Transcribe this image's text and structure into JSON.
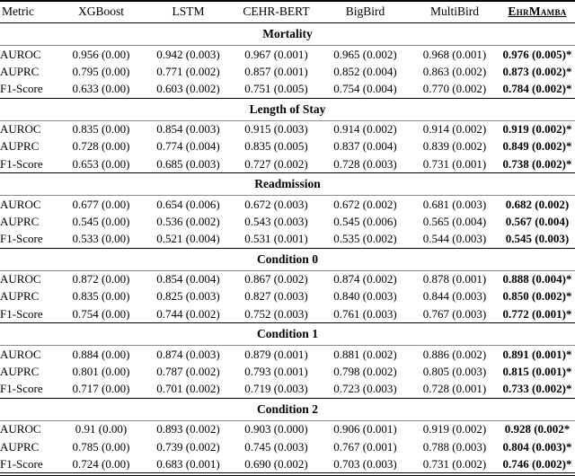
{
  "table": {
    "columns": [
      "Metric",
      "XGBoost",
      "LSTM",
      "CEHR-BERT",
      "BigBird",
      "MultiBird",
      "EhrMamba"
    ],
    "sections": [
      {
        "title": "Mortality",
        "rows": [
          {
            "metric": "AUROC",
            "values": [
              "0.956 (0.00)",
              "0.942 (0.003)",
              "0.967 (0.001)",
              "0.965 (0.002)",
              "0.968 (0.001)",
              "0.976 (0.005)*"
            ]
          },
          {
            "metric": "AUPRC",
            "values": [
              "0.795 (0.00)",
              "0.771 (0.002)",
              "0.857 (0.001)",
              "0.852 (0.004)",
              "0.863 (0.002)",
              "0.873 (0.002)*"
            ]
          },
          {
            "metric": "F1-Score",
            "values": [
              "0.633 (0.00)",
              "0.603 (0.002)",
              "0.751 (0.005)",
              "0.754 (0.004)",
              "0.770 (0.002)",
              "0.784 (0.002)*"
            ]
          }
        ]
      },
      {
        "title": "Length of Stay",
        "rows": [
          {
            "metric": "AUROC",
            "values": [
              "0.835 (0.00)",
              "0.854 (0.003)",
              "0.915 (0.003)",
              "0.914 (0.002)",
              "0.914 (0.002)",
              "0.919 (0.002)*"
            ]
          },
          {
            "metric": "AUPRC",
            "values": [
              "0.728 (0.00)",
              "0.774 (0.004)",
              "0.835 (0.005)",
              "0.837 (0.004)",
              "0.839 (0.002)",
              "0.849 (0.002)*"
            ]
          },
          {
            "metric": "F1-Score",
            "values": [
              "0.653 (0.00)",
              "0.685 (0.003)",
              "0.727 (0.002)",
              "0.728 (0.003)",
              "0.731 (0.001)",
              "0.738 (0.002)*"
            ]
          }
        ]
      },
      {
        "title": "Readmission",
        "rows": [
          {
            "metric": "AUROC",
            "values": [
              "0.677 (0.00)",
              "0.654 (0.006)",
              "0.672 (0.003)",
              "0.672 (0.002)",
              "0.681 (0.003)",
              "0.682 (0.002)"
            ]
          },
          {
            "metric": "AUPRC",
            "values": [
              "0.545 (0.00)",
              "0.536 (0.002)",
              "0.543 (0.003)",
              "0.545 (0.006)",
              "0.565 (0.004)",
              "0.567 (0.004)"
            ]
          },
          {
            "metric": "F1-Score",
            "values": [
              "0.533 (0.00)",
              "0.521 (0.004)",
              "0.531 (0.001)",
              "0.535 (0.002)",
              "0.544 (0.003)",
              "0.545 (0.003)"
            ]
          }
        ]
      },
      {
        "title": "Condition 0",
        "rows": [
          {
            "metric": "AUROC",
            "values": [
              "0.872 (0.00)",
              "0.854 (0.004)",
              "0.867 (0.002)",
              "0.874 (0.002)",
              "0.878 (0.001)",
              "0.888 (0.004)*"
            ]
          },
          {
            "metric": "AUPRC",
            "values": [
              "0.835 (0.00)",
              "0.825 (0.003)",
              "0.827 (0.003)",
              "0.840 (0.003)",
              "0.844 (0.003)",
              "0.850 (0.002)*"
            ]
          },
          {
            "metric": "F1-Score",
            "values": [
              "0.754 (0.00)",
              "0.744 (0.002)",
              "0.752 (0.003)",
              "0.761 (0.003)",
              "0.767 (0.003)",
              "0.772 (0.001)*"
            ]
          }
        ]
      },
      {
        "title": "Condition 1",
        "rows": [
          {
            "metric": "AUROC",
            "values": [
              "0.884 (0.00)",
              "0.874 (0.003)",
              "0.879 (0.001)",
              "0.881 (0.002)",
              "0.886 (0.002)",
              "0.891 (0.001)*"
            ]
          },
          {
            "metric": "AUPRC",
            "values": [
              "0.801 (0.00)",
              "0.787 (0.002)",
              "0.793 (0.001)",
              "0.798 (0.002)",
              "0.805 (0.003)",
              "0.815 (0.001)*"
            ]
          },
          {
            "metric": "F1-Score",
            "values": [
              "0.717 (0.00)",
              "0.701 (0.002)",
              "0.719 (0.003)",
              "0.723 (0.003)",
              "0.728 (0.001)",
              "0.733 (0.002)*"
            ]
          }
        ]
      },
      {
        "title": "Condition 2",
        "rows": [
          {
            "metric": "AUROC",
            "values": [
              "0.91 (0.00)",
              "0.893 (0.002)",
              "0.903 (0.000)",
              "0.906 (0.001)",
              "0.919 (0.002)",
              "0.928 (0.002*"
            ]
          },
          {
            "metric": "AUPRC",
            "values": [
              "0.785 (0.00)",
              "0.739 (0.002)",
              "0.745 (0.003)",
              "0.767 (0.001)",
              "0.788 (0.003)",
              "0.804 (0.003)*"
            ]
          },
          {
            "metric": "F1-Score",
            "values": [
              "0.724 (0.00)",
              "0.683 (0.001)",
              "0.690 (0.002)",
              "0.703 (0.003)",
              "0.731 (0.002)",
              "0.746 (0.002)*"
            ]
          }
        ]
      }
    ]
  }
}
